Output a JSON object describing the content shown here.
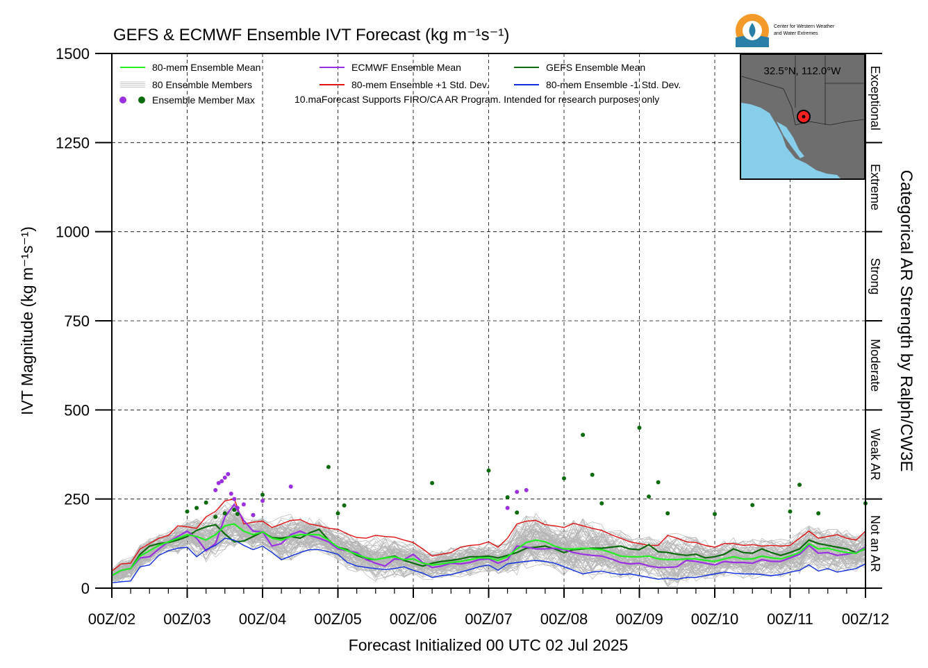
{
  "chart_data": {
    "type": "line",
    "title": "GEFS & ECMWF Ensemble IVT Forecast (kg m⁻¹s⁻¹)",
    "xlabel": "Forecast Initialized 00 UTC 02 Jul 2025",
    "ylabel": "IVT Magnitude (kg m⁻¹s⁻¹)",
    "right_label": "Categorical AR Strength by Ralph/CW3E",
    "xlim": [
      0,
      240
    ],
    "ylim": [
      0,
      1500
    ],
    "x_units": "hours since 00Z/02",
    "grid": true,
    "xticks": [
      {
        "x": 0,
        "label": "00Z/02"
      },
      {
        "x": 24,
        "label": "00Z/03"
      },
      {
        "x": 48,
        "label": "00Z/04"
      },
      {
        "x": 72,
        "label": "00Z/05"
      },
      {
        "x": 96,
        "label": "00Z/06"
      },
      {
        "x": 120,
        "label": "00Z/07"
      },
      {
        "x": 144,
        "label": "00Z/08"
      },
      {
        "x": 168,
        "label": "00Z/09"
      },
      {
        "x": 192,
        "label": "00Z/10"
      },
      {
        "x": 216,
        "label": "00Z/11"
      },
      {
        "x": 240,
        "label": "00Z/12"
      }
    ],
    "yticks": [
      0,
      250,
      500,
      750,
      1000,
      1250,
      1500
    ],
    "categories": [
      {
        "label": "Not an AR",
        "range": [
          0,
          250
        ]
      },
      {
        "label": "Weak AR",
        "range": [
          250,
          500
        ]
      },
      {
        "label": "Moderate",
        "range": [
          500,
          750
        ]
      },
      {
        "label": "Strong",
        "range": [
          750,
          1000
        ]
      },
      {
        "label": "Extreme",
        "range": [
          1000,
          1250
        ]
      },
      {
        "label": "Exceptional",
        "range": [
          1250,
          1500
        ]
      }
    ],
    "legend": {
      "placement": "top-left",
      "entries": [
        {
          "label": "80-mem Ensemble Mean",
          "color": "#22ee22",
          "kind": "line"
        },
        {
          "label": "ECMWF Ensemble Mean",
          "color": "#9b30e0",
          "kind": "line"
        },
        {
          "label": "GEFS Ensemble Mean",
          "color": "#0a6b0a",
          "kind": "line"
        },
        {
          "label": "80 Ensemble Members",
          "color": "#b0b0b0",
          "kind": "members"
        },
        {
          "label": "80-mem Ensemble +1 Std. Dev.",
          "color": "#e01010",
          "kind": "line"
        },
        {
          "label": "80-mem Ensemble -1 Std. Dev.",
          "color": "#1030e0",
          "kind": "line"
        },
        {
          "label": "Ensemble Member Max",
          "color": "#9b30e0",
          "color2": "#0a6b0a",
          "kind": "dots"
        }
      ],
      "note": "10.maForecast Supports FIRO/CA AR Program. Intended for research purposes only"
    },
    "series": [
      {
        "name": "80-mem Ensemble +1 Std. Dev.",
        "color": "#e01010",
        "x": [
          0,
          3,
          6,
          9,
          12,
          15,
          18,
          21,
          24,
          27,
          30,
          33,
          36,
          39,
          42,
          45,
          48,
          51,
          54,
          57,
          60,
          63,
          66,
          69,
          72,
          75,
          78,
          81,
          84,
          87,
          90,
          93,
          96,
          99,
          102,
          105,
          108,
          111,
          114,
          117,
          120,
          123,
          126,
          129,
          132,
          135,
          138,
          141,
          144,
          147,
          150,
          153,
          156,
          159,
          162,
          165,
          168,
          171,
          174,
          177,
          180,
          183,
          186,
          189,
          192,
          195,
          198,
          201,
          204,
          207,
          210,
          213,
          216,
          219,
          222,
          225,
          228,
          231,
          234,
          237,
          240
        ],
        "y": [
          48,
          68,
          70,
          110,
          125,
          140,
          148,
          175,
          172,
          168,
          200,
          215,
          245,
          250,
          180,
          185,
          188,
          170,
          180,
          190,
          192,
          180,
          175,
          168,
          165,
          152,
          142,
          140,
          148,
          145,
          143,
          135,
          128,
          110,
          90,
          95,
          100,
          115,
          120,
          122,
          130,
          115,
          140,
          180,
          188,
          190,
          178,
          175,
          170,
          182,
          175,
          168,
          162,
          150,
          140,
          130,
          125,
          120,
          120,
          148,
          140,
          130,
          128,
          120,
          115,
          125,
          125,
          120,
          122,
          118,
          120,
          118,
          120,
          140,
          160,
          140,
          145,
          150,
          140,
          135,
          160
        ]
      },
      {
        "name": "GEFS Ensemble Mean",
        "color": "#0a6b0a",
        "x": [
          0,
          3,
          6,
          9,
          12,
          15,
          18,
          21,
          24,
          27,
          30,
          33,
          36,
          39,
          42,
          45,
          48,
          51,
          54,
          57,
          60,
          63,
          66,
          69,
          72,
          75,
          78,
          81,
          84,
          87,
          90,
          93,
          96,
          99,
          102,
          105,
          108,
          111,
          114,
          117,
          120,
          123,
          126,
          129,
          132,
          135,
          138,
          141,
          144,
          147,
          150,
          153,
          156,
          159,
          162,
          165,
          168,
          171,
          174,
          177,
          180,
          183,
          186,
          189,
          192,
          195,
          198,
          201,
          204,
          207,
          210,
          213,
          216,
          219,
          222,
          225,
          228,
          231,
          234,
          237,
          240
        ],
        "y": [
          35,
          50,
          55,
          95,
          118,
          125,
          128,
          135,
          145,
          162,
          172,
          178,
          152,
          130,
          132,
          145,
          158,
          142,
          140,
          145,
          140,
          155,
          165,
          135,
          115,
          108,
          92,
          82,
          80,
          85,
          90,
          78,
          70,
          62,
          70,
          75,
          78,
          82,
          88,
          88,
          90,
          85,
          92,
          100,
          112,
          115,
          118,
          110,
          100,
          108,
          110,
          112,
          112,
          115,
          118,
          110,
          108,
          122,
          102,
          100,
          95,
          92,
          95,
          85,
          88,
          95,
          110,
          100,
          98,
          110,
          100,
          92,
          100,
          110,
          135,
          125,
          120,
          115,
          110,
          100,
          110
        ]
      },
      {
        "name": "ECMWF Ensemble Mean",
        "color": "#9b30e0",
        "x": [
          0,
          3,
          6,
          9,
          12,
          15,
          18,
          21,
          24,
          27,
          30,
          33,
          36,
          39,
          42,
          45,
          48,
          51,
          54,
          57,
          60,
          63,
          66,
          69,
          72,
          75,
          78,
          81,
          84,
          87,
          90,
          93,
          96,
          99,
          102,
          105,
          108,
          111,
          114,
          117,
          120,
          123,
          126,
          129,
          132,
          135,
          138,
          141,
          144,
          147,
          150,
          153,
          156,
          159,
          162,
          165,
          168,
          171,
          174,
          177,
          180,
          183,
          186,
          189,
          192,
          195,
          198,
          201,
          204,
          207,
          210,
          213,
          216,
          219,
          222,
          225,
          228,
          231,
          234,
          237,
          240
        ],
        "y": [
          35,
          50,
          55,
          85,
          88,
          110,
          130,
          145,
          160,
          140,
          105,
          125,
          200,
          235,
          190,
          160,
          158,
          118,
          125,
          150,
          160,
          148,
          140,
          130,
          110,
          105,
          100,
          80,
          70,
          62,
          82,
          80,
          95,
          72,
          58,
          62,
          70,
          68,
          72,
          80,
          82,
          70,
          80,
          118,
          115,
          110,
          110,
          112,
          108,
          100,
          95,
          92,
          90,
          82,
          72,
          68,
          70,
          62,
          58,
          58,
          60,
          78,
          75,
          70,
          65,
          75,
          72,
          72,
          70,
          80,
          75,
          75,
          85,
          95,
          120,
          98,
          100,
          92,
          95,
          100,
          115
        ]
      },
      {
        "name": "80-mem Ensemble Mean",
        "color": "#22ee22",
        "x": [
          0,
          3,
          6,
          9,
          12,
          15,
          18,
          21,
          24,
          27,
          30,
          33,
          36,
          39,
          42,
          45,
          48,
          51,
          54,
          57,
          60,
          63,
          66,
          69,
          72,
          75,
          78,
          81,
          84,
          87,
          90,
          93,
          96,
          99,
          102,
          105,
          108,
          111,
          114,
          117,
          120,
          123,
          126,
          129,
          132,
          135,
          138,
          141,
          144,
          147,
          150,
          153,
          156,
          159,
          162,
          165,
          168,
          171,
          174,
          177,
          180,
          183,
          186,
          189,
          192,
          195,
          198,
          201,
          204,
          207,
          210,
          213,
          216,
          219,
          222,
          225,
          228,
          231,
          234,
          237,
          240
        ],
        "y": [
          35,
          50,
          55,
          90,
          105,
          120,
          130,
          140,
          150,
          145,
          135,
          150,
          175,
          180,
          160,
          150,
          158,
          140,
          135,
          145,
          150,
          150,
          150,
          135,
          115,
          105,
          95,
          85,
          80,
          85,
          88,
          80,
          82,
          70,
          65,
          68,
          72,
          75,
          80,
          85,
          85,
          78,
          88,
          110,
          128,
          135,
          130,
          118,
          110,
          110,
          112,
          110,
          108,
          100,
          90,
          88,
          88,
          90,
          82,
          80,
          80,
          82,
          82,
          78,
          75,
          82,
          88,
          82,
          82,
          90,
          85,
          82,
          90,
          100,
          125,
          110,
          112,
          105,
          100,
          98,
          112
        ]
      },
      {
        "name": "80-mem Ensemble -1 Std. Dev.",
        "color": "#1030e0",
        "x": [
          0,
          3,
          6,
          9,
          12,
          15,
          18,
          21,
          24,
          27,
          30,
          33,
          36,
          39,
          42,
          45,
          48,
          51,
          54,
          57,
          60,
          63,
          66,
          69,
          72,
          75,
          78,
          81,
          84,
          87,
          90,
          93,
          96,
          99,
          102,
          105,
          108,
          111,
          114,
          117,
          120,
          123,
          126,
          129,
          132,
          135,
          138,
          141,
          144,
          147,
          150,
          153,
          156,
          159,
          162,
          165,
          168,
          171,
          174,
          177,
          180,
          183,
          186,
          189,
          192,
          195,
          198,
          201,
          204,
          207,
          210,
          213,
          216,
          219,
          222,
          225,
          228,
          231,
          234,
          237,
          240
        ],
        "y": [
          15,
          18,
          20,
          60,
          65,
          92,
          105,
          112,
          115,
          88,
          108,
          120,
          140,
          135,
          120,
          108,
          118,
          100,
          80,
          90,
          100,
          108,
          108,
          102,
          95,
          72,
          62,
          58,
          55,
          52,
          55,
          60,
          50,
          42,
          30,
          35,
          38,
          45,
          52,
          60,
          65,
          50,
          68,
          72,
          75,
          78,
          75,
          70,
          60,
          50,
          40,
          45,
          48,
          42,
          38,
          40,
          35,
          30,
          25,
          28,
          25,
          30,
          30,
          35,
          40,
          45,
          42,
          40,
          40,
          38,
          35,
          38,
          45,
          50,
          65,
          48,
          55,
          45,
          50,
          55,
          68
        ]
      }
    ],
    "ensemble_max_points": [
      {
        "series": "GEFS",
        "x": [
          24,
          27,
          30,
          33,
          36,
          39,
          40,
          45,
          48,
          69,
          72,
          74,
          102,
          120,
          126,
          129,
          144,
          150,
          153,
          156,
          168,
          171,
          174,
          177,
          192,
          204,
          216,
          219,
          225,
          240
        ],
        "y": [
          215,
          225,
          240,
          200,
          210,
          220,
          208,
          205,
          262,
          340,
          210,
          232,
          295,
          330,
          255,
          212,
          308,
          430,
          318,
          238,
          450,
          257,
          297,
          210,
          208,
          233,
          215,
          290,
          210,
          238
        ]
      },
      {
        "series": "ECMWF",
        "x": [
          33,
          34,
          35,
          36,
          37,
          38,
          39,
          40,
          42,
          45,
          48,
          57,
          126,
          129,
          132
        ],
        "y": [
          275,
          295,
          300,
          310,
          320,
          265,
          250,
          225,
          235,
          205,
          245,
          285,
          225,
          270,
          275
        ]
      }
    ]
  },
  "inset_map": {
    "label": "32.5°N, 112.0°W",
    "land_color": "#6e6e6e",
    "water_color": "#87ceeb",
    "marker_color": "#ff2020"
  },
  "logo": {
    "line1": "Center for Western Weather",
    "line2": "and Water Extremes"
  }
}
